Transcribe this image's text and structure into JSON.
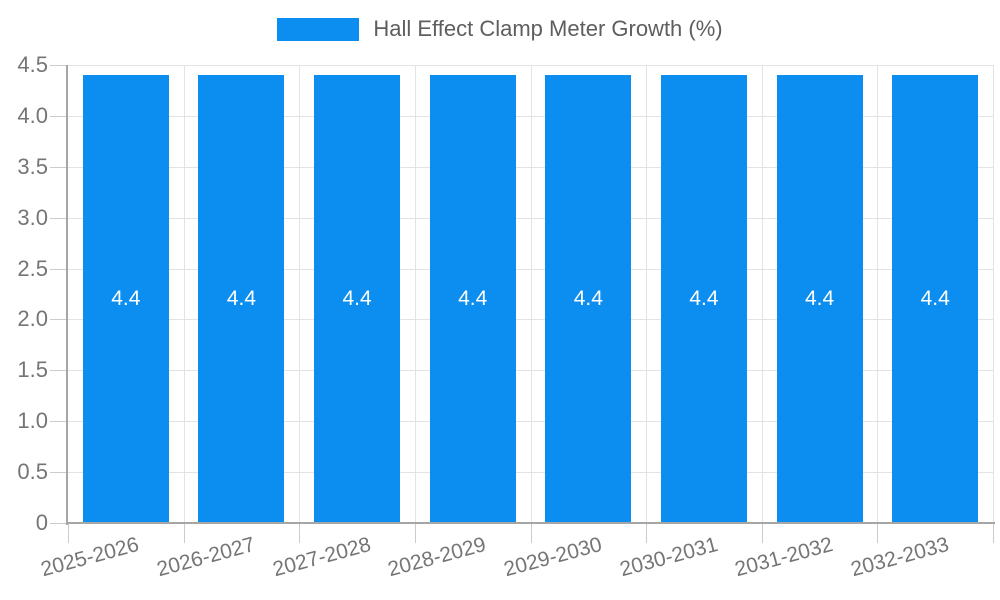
{
  "chart_data": {
    "type": "bar",
    "title": "Hall Effect Clamp Meter Growth (%)",
    "categories": [
      "2025-2026",
      "2026-2027",
      "2027-2028",
      "2028-2029",
      "2029-2030",
      "2030-2031",
      "2031-2032",
      "2032-2033"
    ],
    "series": [
      {
        "name": "Hall Effect Clamp Meter Growth (%)",
        "values": [
          4.4,
          4.4,
          4.4,
          4.4,
          4.4,
          4.4,
          4.4,
          4.4
        ]
      }
    ],
    "bar_labels": [
      "4.4",
      "4.4",
      "4.4",
      "4.4",
      "4.4",
      "4.4",
      "4.4",
      "4.4"
    ],
    "xlabel": "",
    "ylabel": "",
    "ylim": [
      0,
      4.5
    ],
    "ytick_step": 0.5,
    "ytick_labels": [
      "0",
      "0.5",
      "1.0",
      "1.5",
      "2.0",
      "2.5",
      "3.0",
      "3.5",
      "4.0",
      "4.5"
    ],
    "grid": true,
    "legend_position": "top-center",
    "x_tick_rotation_deg": -15,
    "colors": {
      "bar": "#0b8eef",
      "bar_label": "#ffffff",
      "grid": "#e3e3e3",
      "axis": "#a6a6a6",
      "tick": "#cccccc",
      "tick_text": "#757575",
      "legend_text": "#5e5e5e",
      "background": "#ffffff"
    }
  }
}
